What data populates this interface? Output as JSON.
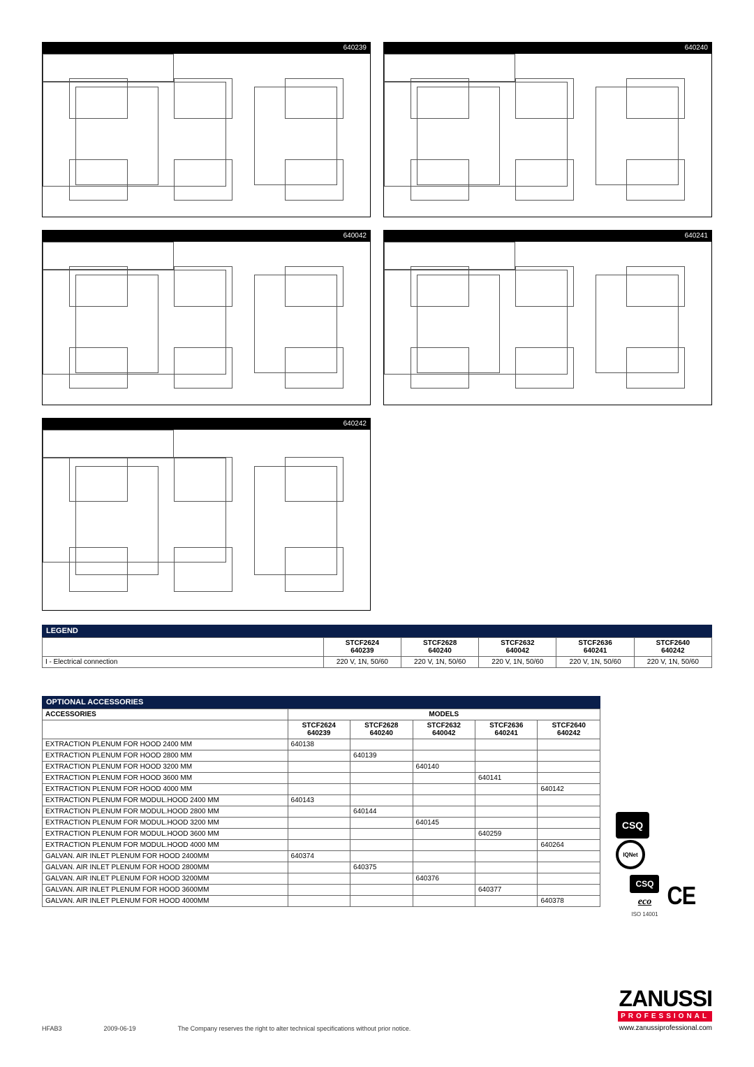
{
  "diagrams": [
    {
      "code": "640239"
    },
    {
      "code": "640240"
    },
    {
      "code": "640042"
    },
    {
      "code": "640241"
    },
    {
      "code": "640242"
    }
  ],
  "legend": {
    "title": "LEGEND",
    "row_label": "I  - Electrical connection",
    "columns": [
      {
        "model": "STCF2624",
        "code": "640239",
        "value": "220 V, 1N, 50/60"
      },
      {
        "model": "STCF2628",
        "code": "640240",
        "value": "220 V, 1N, 50/60"
      },
      {
        "model": "STCF2632",
        "code": "640042",
        "value": "220 V, 1N, 50/60"
      },
      {
        "model": "STCF2636",
        "code": "640241",
        "value": "220 V, 1N, 50/60"
      },
      {
        "model": "STCF2640",
        "code": "640242",
        "value": "220 V, 1N, 50/60"
      }
    ]
  },
  "accessories": {
    "title": "OPTIONAL ACCESSORIES",
    "sub_title": "ACCESSORIES",
    "models_label": "MODELS",
    "columns": [
      {
        "model": "STCF2624",
        "code": "640239"
      },
      {
        "model": "STCF2628",
        "code": "640240"
      },
      {
        "model": "STCF2632",
        "code": "640042"
      },
      {
        "model": "STCF2636",
        "code": "640241"
      },
      {
        "model": "STCF2640",
        "code": "640242"
      }
    ],
    "rows": [
      {
        "label": "EXTRACTION PLENUM FOR HOOD 2400 MM",
        "vals": [
          "640138",
          "",
          "",
          "",
          ""
        ]
      },
      {
        "label": "EXTRACTION PLENUM FOR HOOD 2800 MM",
        "vals": [
          "",
          "640139",
          "",
          "",
          ""
        ]
      },
      {
        "label": "EXTRACTION PLENUM FOR HOOD 3200 MM",
        "vals": [
          "",
          "",
          "640140",
          "",
          ""
        ]
      },
      {
        "label": "EXTRACTION PLENUM FOR HOOD 3600 MM",
        "vals": [
          "",
          "",
          "",
          "640141",
          ""
        ]
      },
      {
        "label": "EXTRACTION PLENUM FOR HOOD 4000 MM",
        "vals": [
          "",
          "",
          "",
          "",
          "640142"
        ]
      },
      {
        "label": "EXTRACTION PLENUM FOR MODUL.HOOD 2400 MM",
        "vals": [
          "640143",
          "",
          "",
          "",
          ""
        ]
      },
      {
        "label": "EXTRACTION PLENUM FOR MODUL.HOOD 2800 MM",
        "vals": [
          "",
          "640144",
          "",
          "",
          ""
        ]
      },
      {
        "label": "EXTRACTION PLENUM FOR MODUL.HOOD 3200 MM",
        "vals": [
          "",
          "",
          "640145",
          "",
          ""
        ]
      },
      {
        "label": "EXTRACTION PLENUM FOR MODUL.HOOD 3600 MM",
        "vals": [
          "",
          "",
          "",
          "640259",
          ""
        ]
      },
      {
        "label": "EXTRACTION PLENUM FOR MODUL.HOOD 4000 MM",
        "vals": [
          "",
          "",
          "",
          "",
          "640264"
        ]
      },
      {
        "label": "GALVAN. AIR INLET PLENUM FOR HOOD 2400MM",
        "vals": [
          "640374",
          "",
          "",
          "",
          ""
        ]
      },
      {
        "label": "GALVAN. AIR INLET PLENUM FOR HOOD 2800MM",
        "vals": [
          "",
          "640375",
          "",
          "",
          ""
        ]
      },
      {
        "label": "GALVAN. AIR INLET PLENUM FOR HOOD 3200MM",
        "vals": [
          "",
          "",
          "640376",
          "",
          ""
        ]
      },
      {
        "label": "GALVAN. AIR INLET PLENUM FOR HOOD 3600MM",
        "vals": [
          "",
          "",
          "",
          "640377",
          ""
        ]
      },
      {
        "label": "GALVAN. AIR INLET PLENUM FOR HOOD 4000MM",
        "vals": [
          "",
          "",
          "",
          "",
          "640378"
        ]
      }
    ]
  },
  "cert": {
    "csq": "CSQ",
    "iqnet": "IQNet",
    "eco": "eco",
    "iso": "ISO 14001",
    "ce": "CE"
  },
  "brand": {
    "name": "ZANUSSI",
    "sub": "PROFESSIONAL",
    "url": "www.zanussiprofessional.com"
  },
  "footer": {
    "code": "HFAB3",
    "date": "2009-06-19",
    "note": "The Company reserves the right to alter technical specifications without prior notice."
  }
}
